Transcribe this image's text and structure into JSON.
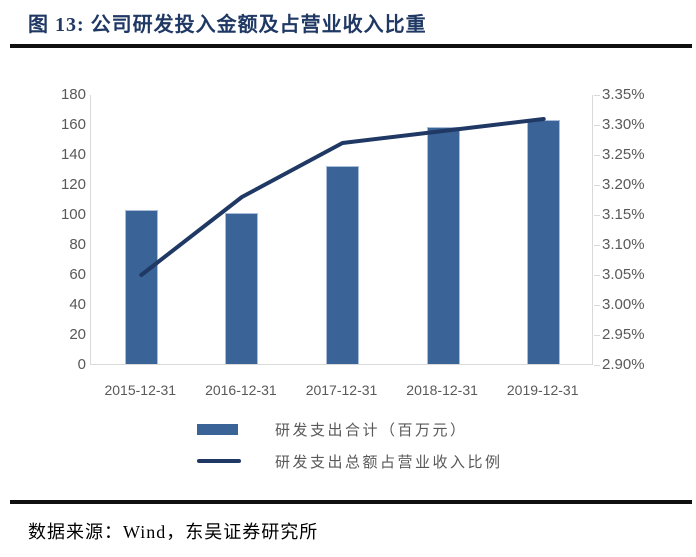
{
  "header": {
    "title": "图 13:  公司研发投入金额及占营业收入比重"
  },
  "chart_data": {
    "type": "combo",
    "title": "公司研发投入金额及占营业收入比重",
    "categories": [
      "2015-12-31",
      "2016-12-31",
      "2017-12-31",
      "2018-12-31",
      "2019-12-31"
    ],
    "series": [
      {
        "name": "研发支出合计（百万元）",
        "type": "bar",
        "axis": "left",
        "values": [
          103,
          101,
          132,
          158,
          163
        ]
      },
      {
        "name": "研发支出总额占营业收入比例",
        "type": "line",
        "axis": "right",
        "unit": "%",
        "values": [
          3.05,
          3.18,
          3.27,
          3.29,
          3.31
        ]
      }
    ],
    "left_axis": {
      "min": 0,
      "max": 180,
      "step": 20,
      "tick_labels": [
        "180",
        "160",
        "140",
        "120",
        "100",
        "80",
        "60",
        "40",
        "20",
        "0"
      ]
    },
    "right_axis": {
      "min": 2.9,
      "max": 3.35,
      "step": 0.05,
      "tick_labels": [
        "3.35%",
        "3.30%",
        "3.25%",
        "3.20%",
        "3.15%",
        "3.10%",
        "3.05%",
        "3.00%",
        "2.95%",
        "2.90%"
      ]
    },
    "grid": false,
    "legend_position": "bottom"
  },
  "colors": {
    "bar": "#3A6397",
    "line": "#1F3864",
    "title": "#1F3864",
    "axis_text": "#595959",
    "axis_line": "#D9D9D9",
    "rule": "#101010"
  },
  "footer": {
    "source": "数据来源：Wind，东吴证券研究所"
  }
}
